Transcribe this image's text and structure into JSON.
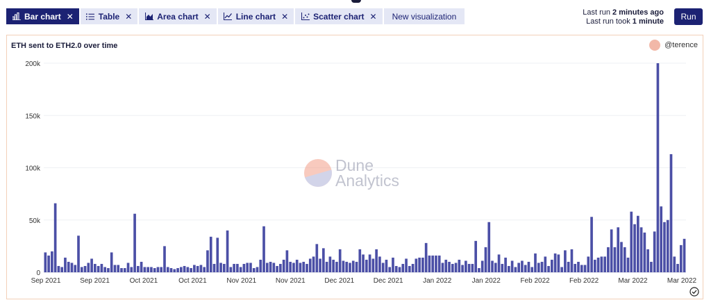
{
  "tabs": [
    {
      "label": "Bar chart",
      "icon": "bar-chart-icon",
      "active": true,
      "closable": true
    },
    {
      "label": "Table",
      "icon": "list-icon",
      "active": false,
      "closable": true
    },
    {
      "label": "Area chart",
      "icon": "area-chart-icon",
      "active": false,
      "closable": true
    },
    {
      "label": "Line chart",
      "icon": "line-chart-icon",
      "active": false,
      "closable": true
    },
    {
      "label": "Scatter chart",
      "icon": "scatter-chart-icon",
      "active": false,
      "closable": true
    },
    {
      "label": "New visualization",
      "active": false,
      "closable": false
    }
  ],
  "last_run": {
    "prefix": "Last run ",
    "value": "2 minutes ago"
  },
  "last_run_took": {
    "prefix": "Last run took ",
    "value": "1 minute"
  },
  "run_label": "Run",
  "watermark": {
    "line1": "Dune",
    "line2": "Analytics"
  },
  "author": "@terence",
  "colors": {
    "accent": "#1c2273",
    "bar": "#4b4fa6",
    "panel_border": "#f3cfb8",
    "tab_bg": "#e4e7f5"
  },
  "chart_data": {
    "type": "bar",
    "title": "ETH sent to ETH2.0 over time",
    "xlabel": "",
    "ylabel": "",
    "ylim": [
      0,
      200000
    ],
    "y_ticks": [
      "0",
      "50k",
      "100k",
      "150k",
      "200k"
    ],
    "x_tick_labels": [
      "Sep 2021",
      "Sep 2021",
      "Oct 2021",
      "Oct 2021",
      "Nov 2021",
      "Nov 2021",
      "Dec 2021",
      "Dec 2021",
      "Jan 2022",
      "Jan 2022",
      "Feb 2022",
      "Feb 2022",
      "Mar 2022",
      "Mar 2022"
    ],
    "grid": true,
    "values": [
      19000,
      16000,
      20000,
      66000,
      6000,
      5000,
      14000,
      10000,
      9000,
      7000,
      35000,
      5000,
      6000,
      9000,
      13000,
      8000,
      6000,
      8000,
      5000,
      4000,
      19000,
      7000,
      7000,
      4000,
      4000,
      9000,
      5000,
      56000,
      6000,
      10000,
      5000,
      5000,
      5000,
      4000,
      5000,
      5000,
      25000,
      5000,
      4000,
      3000,
      4000,
      5000,
      6000,
      5000,
      4000,
      7000,
      6000,
      7000,
      5000,
      21000,
      34000,
      8000,
      33000,
      9000,
      8000,
      40000,
      5000,
      8000,
      8000,
      5000,
      8000,
      9000,
      9000,
      4000,
      5000,
      12000,
      44000,
      9000,
      10000,
      9000,
      6000,
      8000,
      12000,
      21000,
      10000,
      9000,
      12000,
      9000,
      10000,
      8000,
      13000,
      15000,
      27000,
      13000,
      23000,
      10000,
      15000,
      12000,
      10000,
      22000,
      11000,
      10000,
      9000,
      11000,
      10000,
      22000,
      17000,
      12000,
      17000,
      13000,
      22000,
      15000,
      9000,
      12000,
      5000,
      14000,
      6000,
      5000,
      8000,
      13000,
      6000,
      8000,
      13000,
      14000,
      14000,
      28000,
      16000,
      16000,
      16000,
      16000,
      9000,
      12000,
      10000,
      8000,
      9000,
      12000,
      7000,
      11000,
      8000,
      8000,
      30000,
      4000,
      11000,
      24000,
      48000,
      11000,
      9000,
      17000,
      8000,
      14000,
      6000,
      11000,
      5000,
      9000,
      11000,
      7000,
      10000,
      5000,
      18000,
      9000,
      10000,
      15000,
      6000,
      12000,
      18000,
      17000,
      5000,
      21000,
      10000,
      22000,
      8000,
      10000,
      7000,
      7000,
      15000,
      53000,
      12000,
      14000,
      15000,
      15000,
      24000,
      41000,
      24000,
      43000,
      29000,
      24000,
      14000,
      58000,
      46000,
      54000,
      43000,
      38000,
      22000,
      10000,
      39000,
      200000,
      63000,
      48000,
      50000,
      113000,
      15000,
      8000,
      26000,
      32000
    ]
  }
}
